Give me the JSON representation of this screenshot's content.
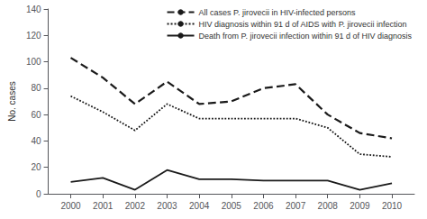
{
  "chart_data": {
    "type": "line",
    "x": [
      2000,
      2001,
      2002,
      2003,
      2004,
      2005,
      2006,
      2007,
      2008,
      2009,
      2010
    ],
    "xlim": [
      1999.3,
      2010.7
    ],
    "xticks": [
      2000,
      2001,
      2002,
      2003,
      2004,
      2005,
      2006,
      2007,
      2008,
      2009,
      2010
    ],
    "ylim": [
      0,
      140
    ],
    "yticks": [
      0,
      20,
      40,
      60,
      80,
      100,
      120,
      140
    ],
    "ylabel": "No. cases",
    "grid": false,
    "legend": "upper right",
    "series": [
      {
        "name": "All cases P. jirovecii in HIV-infected persons",
        "color": "#1a1a1a",
        "line_style": "dashed",
        "values": [
          103,
          88,
          68,
          85,
          68,
          70,
          80,
          83,
          60,
          46,
          42
        ]
      },
      {
        "name": "HIV diagnosis within 91 d of AIDS with P. jirovecii infection",
        "color": "#1a1a1a",
        "line_style": "dotted",
        "values": [
          74,
          62,
          48,
          68,
          57,
          57,
          57,
          57,
          50,
          30,
          28
        ]
      },
      {
        "name": "Death from P. jirovecii infection within 91 d of HIV diagnosis",
        "color": "#1a1a1a",
        "line_style": "solid",
        "values": [
          9,
          12,
          3,
          18,
          11,
          11,
          10,
          10,
          10,
          3,
          8
        ]
      }
    ]
  }
}
